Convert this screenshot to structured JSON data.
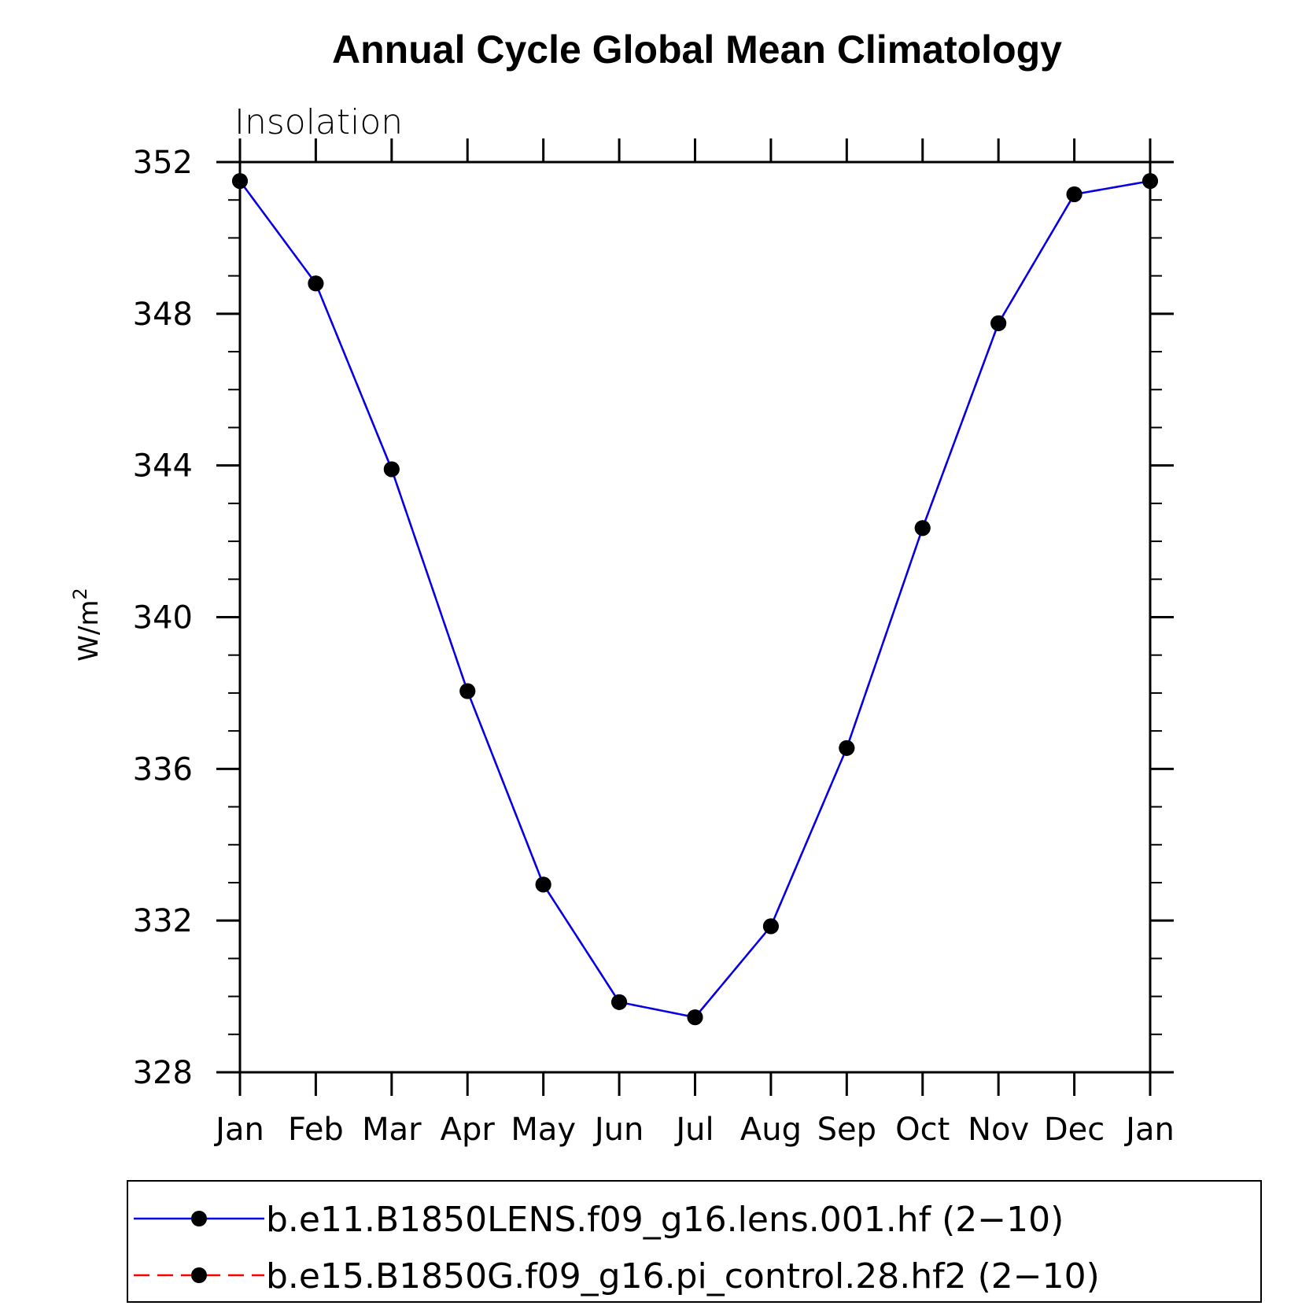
{
  "chart_data": {
    "type": "line",
    "title": "Annual Cycle Global Mean Climatology",
    "subtitle": "Insolation",
    "ylabel": "W/m",
    "ylabel_superscript": "2",
    "xlabel": "",
    "categories": [
      "Jan",
      "Feb",
      "Mar",
      "Apr",
      "May",
      "Jun",
      "Jul",
      "Aug",
      "Sep",
      "Oct",
      "Nov",
      "Dec",
      "Jan"
    ],
    "ylim": [
      328,
      352
    ],
    "yticks": [
      328,
      332,
      336,
      340,
      344,
      348,
      352
    ],
    "y_minor_step": 1,
    "grid": false,
    "legend_position": "bottom",
    "series": [
      {
        "name": "b.e11.B1850LENS.f09_g16.lens.001.hf (2−10)",
        "color": "#0000ee",
        "dash": "solid",
        "marker": "filled-circle",
        "values": [
          351.5,
          348.8,
          343.9,
          338.05,
          332.95,
          329.85,
          329.45,
          331.85,
          336.55,
          342.35,
          347.75,
          351.15,
          351.5
        ]
      },
      {
        "name": "b.e15.B1850G.f09_g16.pi_control.28.hf2 (2−10)",
        "color": "#ff0000",
        "dash": "dashed",
        "marker": "filled-circle",
        "values": [
          351.5,
          348.8,
          343.9,
          338.05,
          332.95,
          329.85,
          329.45,
          331.85,
          336.55,
          342.35,
          347.75,
          351.15,
          351.5
        ]
      }
    ]
  }
}
